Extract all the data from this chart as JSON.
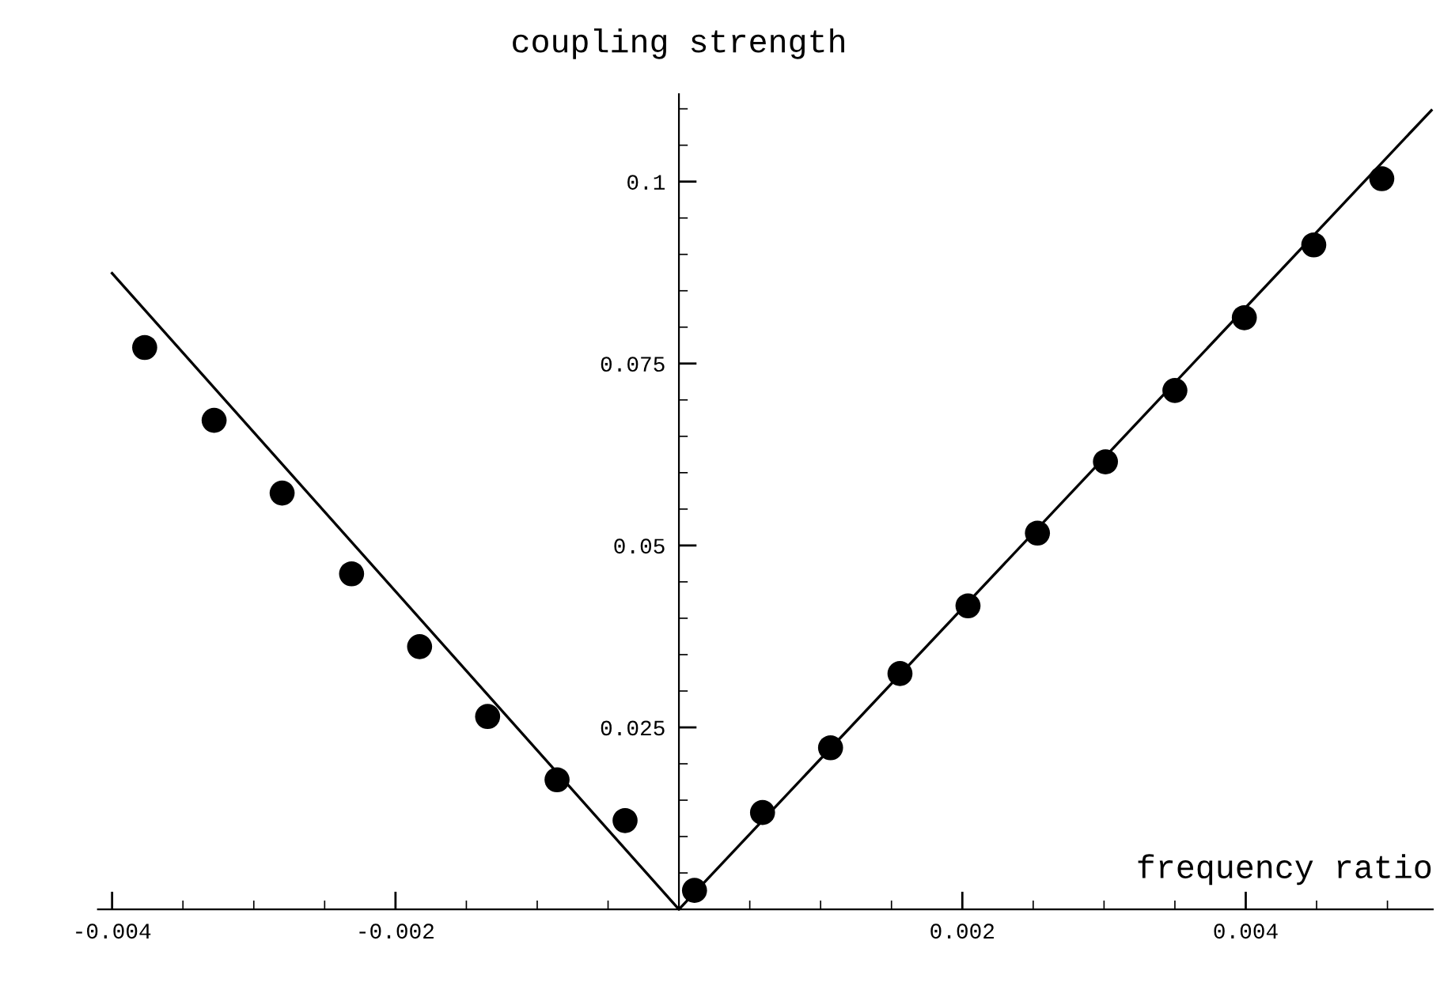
{
  "chart_data": {
    "type": "scatter",
    "xlabel": "frequency ratio",
    "ylabel": "coupling strength",
    "xlim": [
      -0.0041,
      0.00532
    ],
    "ylim": [
      0,
      0.112
    ],
    "xticks": [
      -0.004,
      -0.002,
      0.002,
      0.004
    ],
    "yticks": [
      0.025,
      0.05,
      0.075,
      0.1
    ],
    "grid": false,
    "legend": false,
    "marker": "circle",
    "series": [
      {
        "color": "#000000",
        "x": [
          -0.00377,
          -0.00328,
          -0.0028,
          -0.00231,
          -0.00183,
          -0.00135,
          -0.00086,
          -0.00038,
          0.00011,
          0.00059,
          0.00107,
          0.00156,
          0.00204,
          0.00253,
          0.00301,
          0.0035,
          0.00399,
          0.00448,
          0.00496
        ],
        "values": [
          0.0772,
          0.0672,
          0.0572,
          0.0461,
          0.0361,
          0.0265,
          0.0178,
          0.0122,
          0.0026,
          0.0133,
          0.0222,
          0.0324,
          0.0417,
          0.0517,
          0.0615,
          0.0713,
          0.0813,
          0.0913,
          0.1004
        ]
      },
      {
        "type": "line",
        "color": "#000000",
        "marker": "none",
        "line_style": "solid",
        "x": [
          -0.004,
          0,
          0.00531
        ],
        "values": [
          0.0874,
          0,
          0.1098
        ]
      }
    ]
  }
}
